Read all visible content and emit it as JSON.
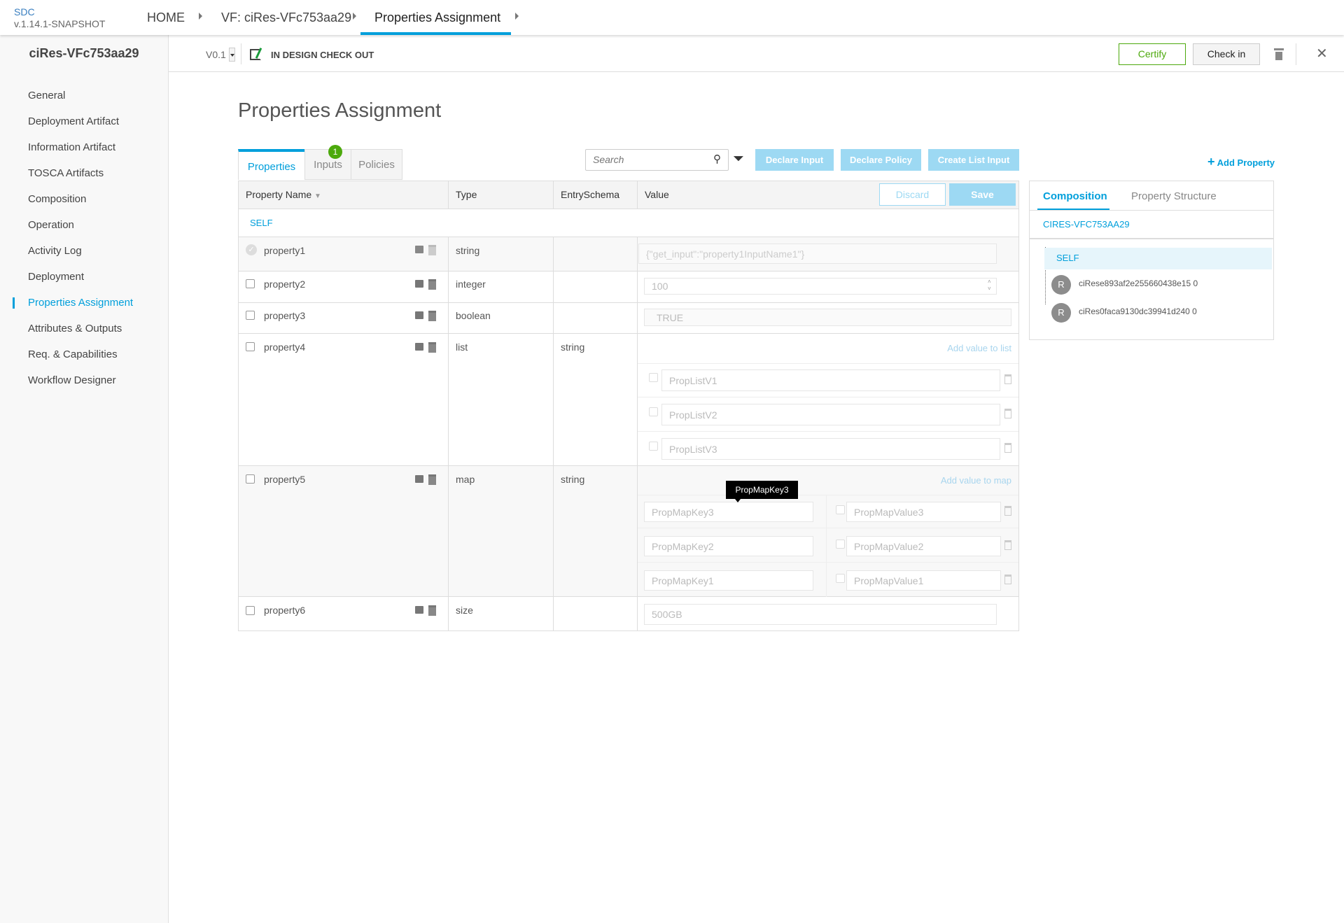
{
  "header": {
    "brand": "SDC",
    "version": "v.1.14.1-SNAPSHOT",
    "breadcrumbs": [
      "HOME",
      "VF: ciRes-VFc753aa29",
      "Properties Assignment"
    ]
  },
  "subbar": {
    "component_name": "ciRes-VFc753aa29",
    "version": "V0.1",
    "status": "IN DESIGN CHECK OUT",
    "certify": "Certify",
    "check_in": "Check in"
  },
  "sidebar": {
    "items": [
      "General",
      "Deployment Artifact",
      "Information Artifact",
      "TOSCA Artifacts",
      "Composition",
      "Operation",
      "Activity Log",
      "Deployment",
      "Properties Assignment",
      "Attributes & Outputs",
      "Req. & Capabilities",
      "Workflow Designer"
    ],
    "active": "Properties Assignment"
  },
  "main": {
    "title": "Properties Assignment",
    "tabs": [
      "Properties",
      "Inputs",
      "Policies"
    ],
    "inputs_badge": "1",
    "search_placeholder": "Search",
    "actions": [
      "Declare Input",
      "Declare Policy",
      "Create List Input"
    ],
    "add_property": "Add Property",
    "columns": [
      "Property Name",
      "Type",
      "EntrySchema",
      "Value"
    ],
    "discard": "Discard",
    "save": "Save",
    "group": "SELF",
    "rows": [
      {
        "name": "property1",
        "type": "string",
        "schema": "",
        "value": "{\"get_input\":\"property1InputName1\"}",
        "declared": true
      },
      {
        "name": "property2",
        "type": "integer",
        "schema": "",
        "value": "100"
      },
      {
        "name": "property3",
        "type": "boolean",
        "schema": "",
        "value": "TRUE"
      },
      {
        "name": "property4",
        "type": "list",
        "schema": "string",
        "add_label": "Add value to list",
        "items": [
          "PropListV1",
          "PropListV2",
          "PropListV3"
        ]
      },
      {
        "name": "property5",
        "type": "map",
        "schema": "string",
        "add_label": "Add value to map",
        "entries": [
          {
            "key": "PropMapKey3",
            "value": "PropMapValue3"
          },
          {
            "key": "PropMapKey2",
            "value": "PropMapValue2"
          },
          {
            "key": "PropMapKey1",
            "value": "PropMapValue1"
          }
        ]
      },
      {
        "name": "property6",
        "type": "size",
        "schema": "",
        "value": "500GB"
      }
    ],
    "tooltip": "PropMapKey3"
  },
  "right_panel": {
    "tabs": [
      "Composition",
      "Property Structure"
    ],
    "root": "CIRES-VFC753AA29",
    "self": "SELF",
    "instances": [
      {
        "avatar": "R",
        "name": "ciRese893af2e255660438e15 0"
      },
      {
        "avatar": "R",
        "name": "ciRes0faca9130dc39941d240 0"
      }
    ]
  },
  "colors": {
    "accent": "#009fdb",
    "certify": "#4ca90c",
    "badge": "#4ca90c",
    "action_button": "#9dd9f3"
  }
}
